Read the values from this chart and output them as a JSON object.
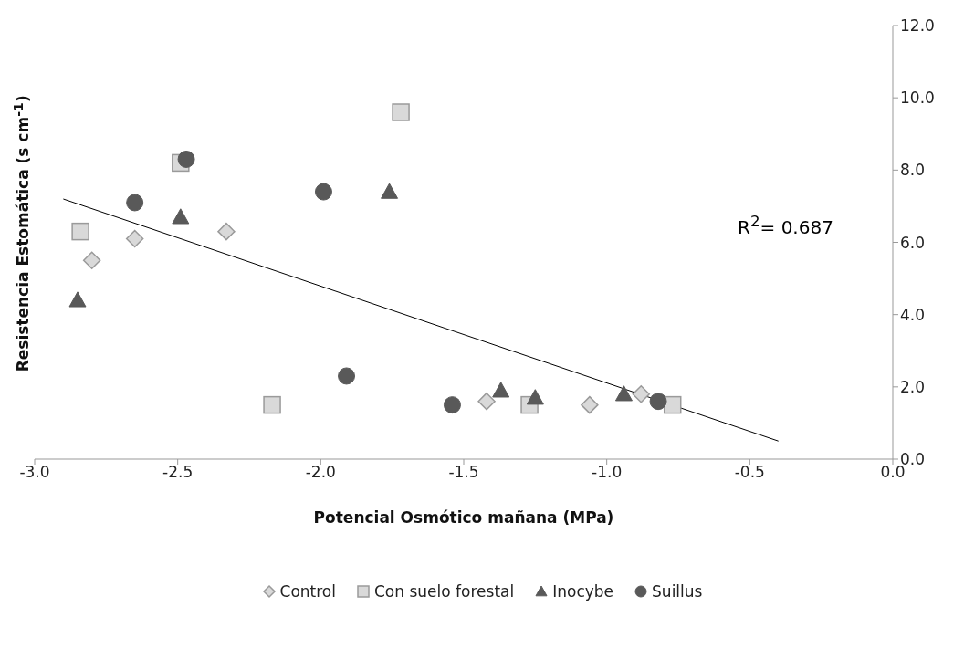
{
  "chart_data": {
    "type": "scatter",
    "xlabel": "Potencial Osmótico mañana (MPa)",
    "ylabel": "Resistencia Estomática (s cm$^{-1}$)",
    "annotations": [
      "R$^{2}$= 0.687"
    ],
    "xlim": [
      -3,
      0
    ],
    "xticks": [
      {
        "value": -3,
        "label": "-3.0"
      },
      {
        "value": -2.5,
        "label": "-2.5"
      },
      {
        "value": -2,
        "label": "-2.0"
      },
      {
        "value": -1.5,
        "label": "-1.5"
      },
      {
        "value": -1,
        "label": "-1.0"
      },
      {
        "value": -0.5,
        "label": "-0.5"
      },
      {
        "value": 0,
        "label": "0.0"
      }
    ],
    "ylim": [
      0,
      12
    ],
    "yticks": [
      {
        "value": 0,
        "label": "0.0"
      },
      {
        "value": 2,
        "label": "2.0"
      },
      {
        "value": 4,
        "label": "4.0"
      },
      {
        "value": 6,
        "label": "6.0"
      },
      {
        "value": 8,
        "label": "8.0"
      },
      {
        "value": 10,
        "label": "10.0"
      },
      {
        "value": 12,
        "label": "12.0"
      }
    ],
    "grid": false,
    "legend": "bottom",
    "series": [
      {
        "name": "Control",
        "color": "#d9d9d9",
        "marker": "diamond",
        "x": [
          -2.8,
          -2.65,
          -2.33,
          -1.42,
          -1.06,
          -0.88
        ],
        "values": [
          5.5,
          6.1,
          6.3,
          1.6,
          1.5,
          1.8
        ]
      },
      {
        "name": "Con suelo forestal",
        "color": "#d9d9d9",
        "marker": "square",
        "x": [
          -2.84,
          -2.49,
          -1.72,
          -2.17,
          -1.27,
          -0.77
        ],
        "values": [
          6.3,
          8.2,
          9.6,
          1.5,
          1.5,
          1.5
        ]
      },
      {
        "name": "Inocybe",
        "color": "#595959",
        "marker": "triangle",
        "x": [
          -2.85,
          -2.49,
          -1.76,
          -1.37,
          -1.25,
          -0.94
        ],
        "values": [
          4.4,
          6.7,
          7.4,
          1.9,
          1.7,
          1.8
        ]
      },
      {
        "name": "Suillus",
        "color": "#595959",
        "marker": "circle",
        "x": [
          -2.65,
          -2.47,
          -1.99,
          -1.91,
          -1.54,
          -0.82
        ],
        "values": [
          7.1,
          8.3,
          7.4,
          2.3,
          1.5,
          1.6
        ]
      },
      {
        "type": "line",
        "color": "#000000",
        "marker": "none",
        "x": [
          -2.9,
          -0.4
        ],
        "values": [
          7.2,
          0.5
        ]
      }
    ]
  }
}
